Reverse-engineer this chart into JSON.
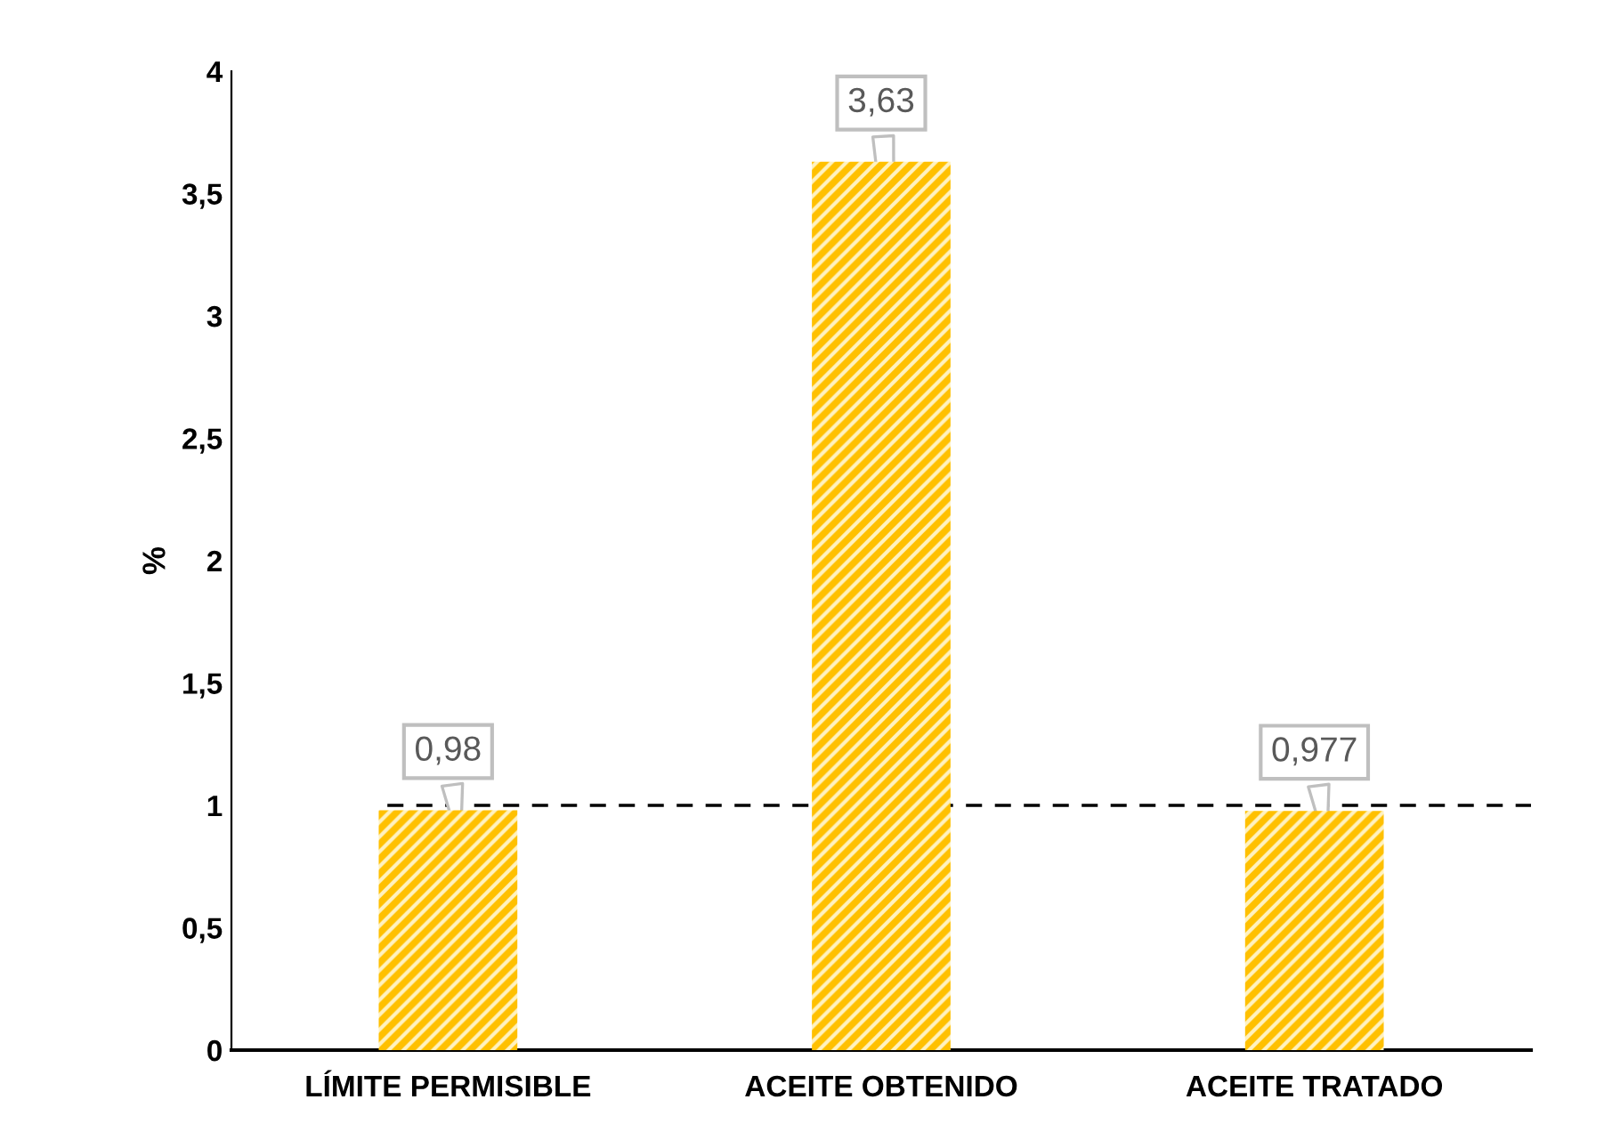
{
  "chart_data": {
    "type": "bar",
    "ylabel": "%",
    "categories": [
      "LÍMITE PERMISIBLE",
      "ACEITE OBTENIDO",
      "ACEITE TRATADO"
    ],
    "values": [
      0.98,
      3.63,
      0.977
    ],
    "color": "#ffc000",
    "value_labels": [
      "0,98",
      "3,63",
      "0,977"
    ],
    "ylim": [
      0,
      4
    ],
    "yticks": [
      0,
      {
        "value": 0.5,
        "label": "0,5"
      },
      1,
      {
        "value": 1.5,
        "label": "1,5"
      },
      2,
      {
        "value": 2.5,
        "label": "2,5"
      },
      3,
      {
        "value": 3.5,
        "label": "3,5"
      },
      4
    ],
    "ref_lines": [
      {
        "axis": "y",
        "value": 1,
        "color": "#000000",
        "line_style": "dashed"
      }
    ],
    "grid": false
  }
}
